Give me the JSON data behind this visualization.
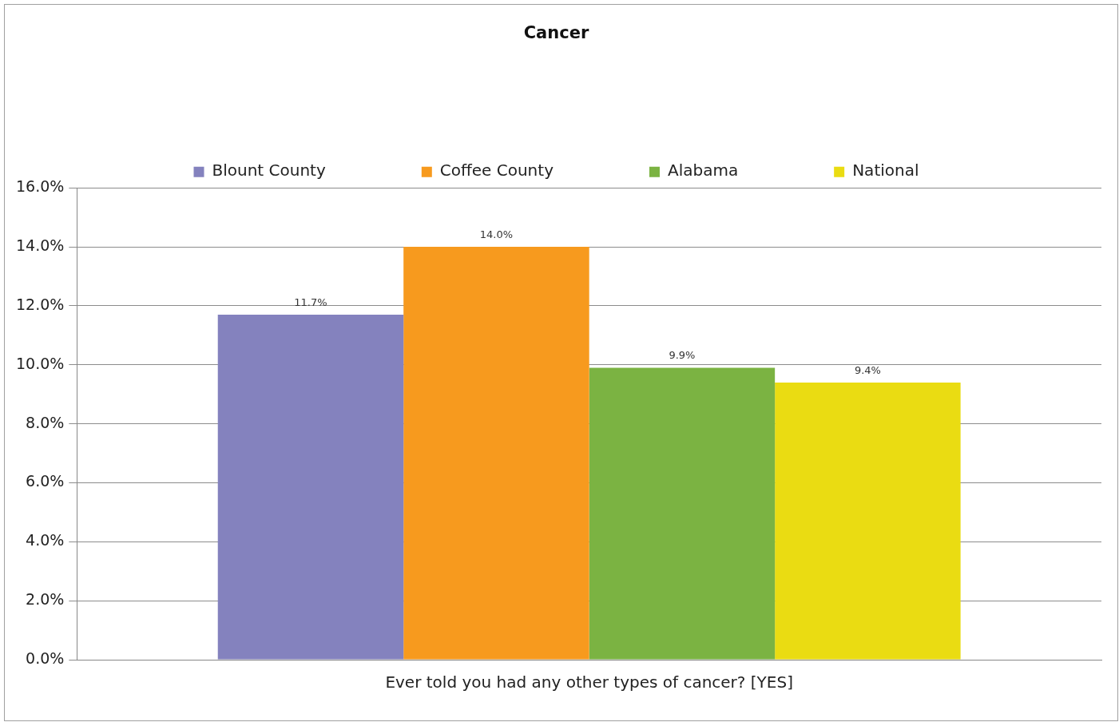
{
  "chart_data": {
    "type": "bar",
    "title": "Cancer",
    "categories": [
      "Ever told you had any other types of cancer? [YES]"
    ],
    "series": [
      {
        "name": "Blount County",
        "color": "#8482be",
        "values": [
          11.7
        ],
        "value_labels": [
          "11.7%"
        ]
      },
      {
        "name": "Coffee County",
        "color": "#f79a1e",
        "values": [
          14.0
        ],
        "value_labels": [
          "14.0%"
        ]
      },
      {
        "name": "Alabama",
        "color": "#7bb342",
        "values": [
          9.9
        ],
        "value_labels": [
          "9.9%"
        ]
      },
      {
        "name": "National",
        "color": "#eadc12",
        "values": [
          9.4
        ],
        "value_labels": [
          "9.4%"
        ]
      }
    ],
    "ylim": [
      0,
      16
    ],
    "yticks": [
      {
        "value": 0,
        "label": "0.0%"
      },
      {
        "value": 2,
        "label": "2.0%"
      },
      {
        "value": 4,
        "label": "4.0%"
      },
      {
        "value": 6,
        "label": "6.0%"
      },
      {
        "value": 8,
        "label": "8.0%"
      },
      {
        "value": 10,
        "label": "10.0%"
      },
      {
        "value": 12,
        "label": "12.0%"
      },
      {
        "value": 14,
        "label": "14.0%"
      },
      {
        "value": 16,
        "label": "16.0%"
      }
    ],
    "grid": "y",
    "legend": "top"
  }
}
